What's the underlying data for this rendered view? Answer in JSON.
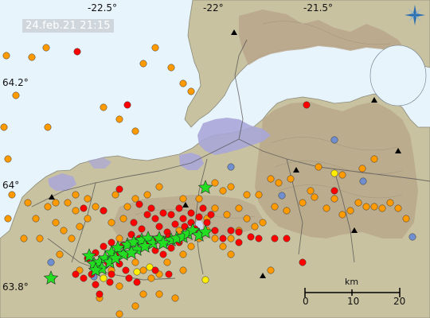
{
  "timestamp": "24.feb.21  21:15",
  "longitude_labels": [
    "-22.5°",
    "-22°",
    "-21.5°"
  ],
  "latitude_labels": [
    "64.2°",
    "64°",
    "63.8°"
  ],
  "scale_bar": {
    "unit": "km",
    "ticks": [
      "0",
      "10",
      "20"
    ]
  },
  "colors": {
    "sea": "#e8f4fc",
    "land": "#c9c2a0",
    "highland": "#b8a68a",
    "lake": "#ccd8ee",
    "urban": "#a9a6d8",
    "roads": "#555555",
    "quake_recent": "#ff0000",
    "quake_hours": "#ff9a00",
    "quake_day": "#ffee00",
    "quake_older": "#6f8fd0",
    "large_quake": "#22dd22",
    "station": "#000000"
  },
  "compass_icon": "compass-rose-icon",
  "legend_note": "Dots = earthquakes colored by age; green stars = larger quakes; black triangles = seismic stations"
}
